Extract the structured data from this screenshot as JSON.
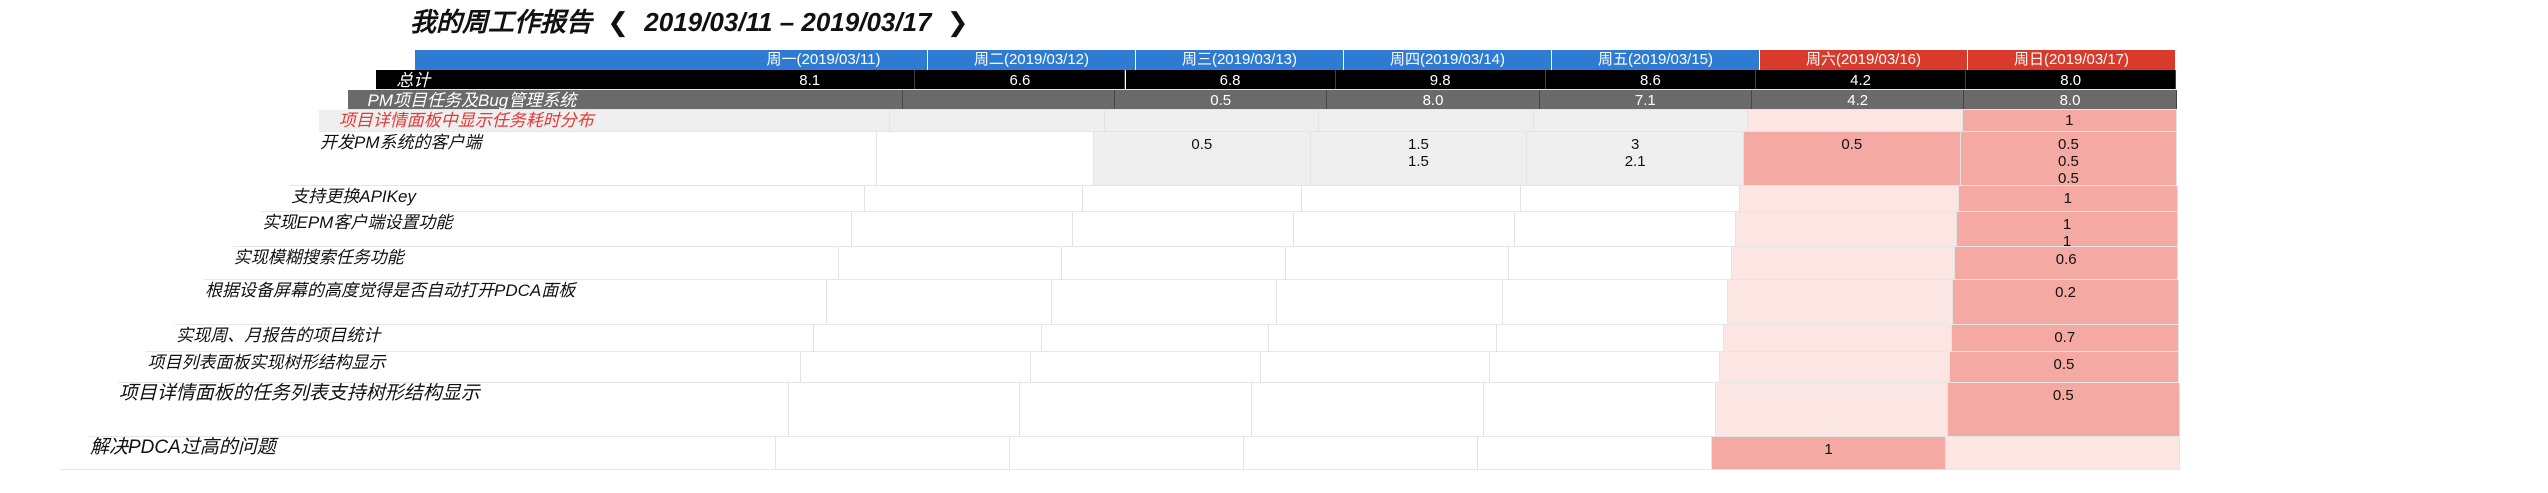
{
  "report": {
    "title": "我的周工作报告",
    "range": "2019/03/11 – 2019/03/17",
    "prev_icon": "chevron-left-icon",
    "next_icon": "chevron-right-icon"
  },
  "colors": {
    "header_blue": "#2f7bd4",
    "header_red": "#d93a2b",
    "total_black": "#000000",
    "group_gray": "#6a6a6a",
    "weekend_light": "#fbe6e4",
    "weekend_mid": "#f4aaa2",
    "row_gray": "#efefef",
    "highlight_text": "#e53935"
  },
  "days": [
    {
      "label": "周一(2019/03/11)",
      "weekend": false
    },
    {
      "label": "周二(2019/03/12)",
      "weekend": false
    },
    {
      "label": "周三(2019/03/13)",
      "weekend": false
    },
    {
      "label": "周四(2019/03/14)",
      "weekend": false
    },
    {
      "label": "周五(2019/03/15)",
      "weekend": false
    },
    {
      "label": "周六(2019/03/16)",
      "weekend": true
    },
    {
      "label": "周日(2019/03/17)",
      "weekend": true
    }
  ],
  "rows": [
    {
      "type": "total",
      "label": "总计",
      "cells": [
        "8.1",
        "6.6",
        "6.8",
        "9.8",
        "8.6",
        "4.2",
        "8.0"
      ]
    },
    {
      "type": "project",
      "label": "PM项目任务及Bug管理系统",
      "cells": [
        "",
        "",
        "0.5",
        "8.0",
        "7.1",
        "4.2",
        "8.0"
      ]
    },
    {
      "type": "highlight",
      "label": "项目详情面板中显示任务耗时分布",
      "cells": [
        "",
        "",
        "",
        "",
        "",
        "",
        "1"
      ]
    },
    {
      "type": "task",
      "label": "开发PM系统的客户端",
      "cells": [
        "",
        "",
        "0.5",
        "1.5\n1.5",
        "3\n2.1",
        "0.5",
        "0.5\n0.5\n0.5"
      ]
    },
    {
      "type": "task",
      "label": "支持更换APIKey",
      "cells": [
        "",
        "",
        "",
        "",
        "",
        "",
        "1"
      ]
    },
    {
      "type": "task",
      "label": "实现EPM客户端设置功能",
      "cells": [
        "",
        "",
        "",
        "",
        "",
        "",
        "1\n1"
      ]
    },
    {
      "type": "task",
      "label": "实现模糊搜索任务功能",
      "cells": [
        "",
        "",
        "",
        "",
        "",
        "",
        "0.6"
      ]
    },
    {
      "type": "task",
      "label": "根据设备屏幕的高度觉得是否自动打开PDCA面板",
      "cells": [
        "",
        "",
        "",
        "",
        "",
        "",
        "0.2"
      ]
    },
    {
      "type": "task",
      "label": "实现周、月报告的项目统计",
      "cells": [
        "",
        "",
        "",
        "",
        "",
        "",
        "0.7"
      ]
    },
    {
      "type": "task",
      "label": "项目列表面板实现树形结构显示",
      "cells": [
        "",
        "",
        "",
        "",
        "",
        "",
        "0.5"
      ]
    },
    {
      "type": "task",
      "label": "项目详情面板的任务列表支持树形结构显示",
      "cells": [
        "",
        "",
        "",
        "",
        "",
        "",
        "0.5"
      ]
    },
    {
      "type": "task",
      "label": "解决PDCA过高的问题",
      "cells": [
        "",
        "",
        "",
        "",
        "",
        "1",
        ""
      ]
    }
  ]
}
